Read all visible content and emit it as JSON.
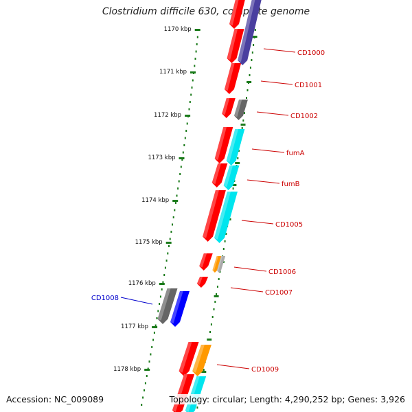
{
  "title": "Clostridium difficile 630, complete genome",
  "accession": "Accession: NC_009089",
  "topology": "Topology: circular; Length: 4,290,252 bp; Genes: 3,926",
  "colors": {
    "forward_gene": "#ff0000",
    "backbone": "#888888",
    "tick": "#1a7a1a",
    "label_line": "#cc0000",
    "label_text": "#cc0000",
    "highlight_label": "#0000cc"
  },
  "scale_ticks": [
    "1170 kbp",
    "1171 kbp",
    "1172 kbp",
    "1173 kbp",
    "1174 kbp",
    "1175 kbp",
    "1176 kbp",
    "1177 kbp",
    "1178 kbp"
  ],
  "gene_labels": [
    {
      "name": "CD1000",
      "color": "#cc0000"
    },
    {
      "name": "CD1001",
      "color": "#cc0000"
    },
    {
      "name": "CD1002",
      "color": "#cc0000"
    },
    {
      "name": "fumA",
      "color": "#cc0000"
    },
    {
      "name": "fumB",
      "color": "#cc0000"
    },
    {
      "name": "CD1005",
      "color": "#cc0000"
    },
    {
      "name": "CD1006",
      "color": "#cc0000"
    },
    {
      "name": "CD1007",
      "color": "#cc0000"
    },
    {
      "name": "CD1008",
      "color": "#0000cc"
    },
    {
      "name": "CD1009",
      "color": "#cc0000"
    }
  ],
  "feature_colors": {
    "red": "#ff0000",
    "navy": "#4a3f9f",
    "gray": "#666666",
    "cyan": "#00e5ee",
    "orange": "#ff9900",
    "lightgray": "#aaaaaa",
    "blue": "#0000ff"
  }
}
